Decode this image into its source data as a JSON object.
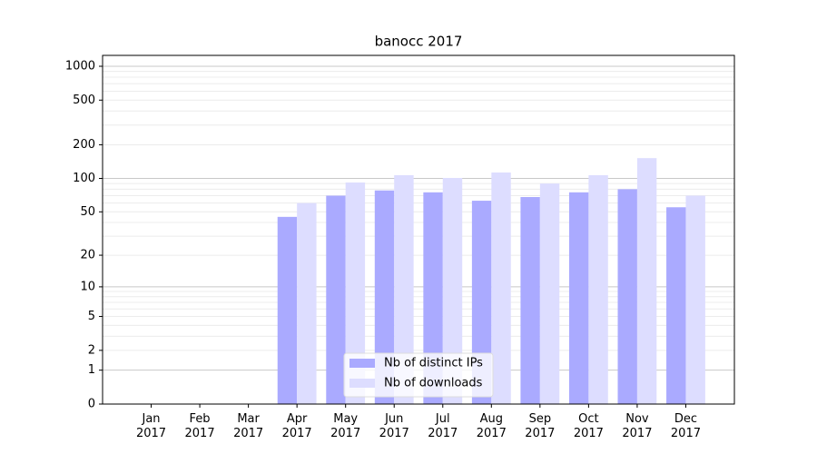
{
  "chart_data": {
    "type": "bar",
    "title": "banocc 2017",
    "scale": "log1p",
    "categories": [
      "Jan 2017",
      "Feb 2017",
      "Mar 2017",
      "Apr 2017",
      "May 2017",
      "Jun 2017",
      "Jul 2017",
      "Aug 2017",
      "Sep 2017",
      "Oct 2017",
      "Nov 2017",
      "Dec 2017"
    ],
    "series": [
      {
        "name": "Nb of distinct IPs",
        "color": "#aaaaff",
        "values": [
          0,
          0,
          0,
          45,
          70,
          78,
          75,
          63,
          68,
          75,
          80,
          55
        ]
      },
      {
        "name": "Nb of downloads",
        "color": "#ddddff",
        "values": [
          0,
          0,
          0,
          60,
          92,
          107,
          101,
          113,
          90,
          107,
          152,
          70
        ]
      }
    ],
    "ylim": [
      0,
      1250
    ],
    "yticks": [
      0,
      1,
      2,
      5,
      10,
      20,
      50,
      100,
      200,
      500,
      1000
    ],
    "yminorticks": [
      3,
      4,
      6,
      7,
      8,
      9,
      30,
      40,
      60,
      70,
      80,
      90,
      300,
      400,
      600,
      700,
      800,
      900
    ],
    "grid": true,
    "legend": "lower center"
  }
}
